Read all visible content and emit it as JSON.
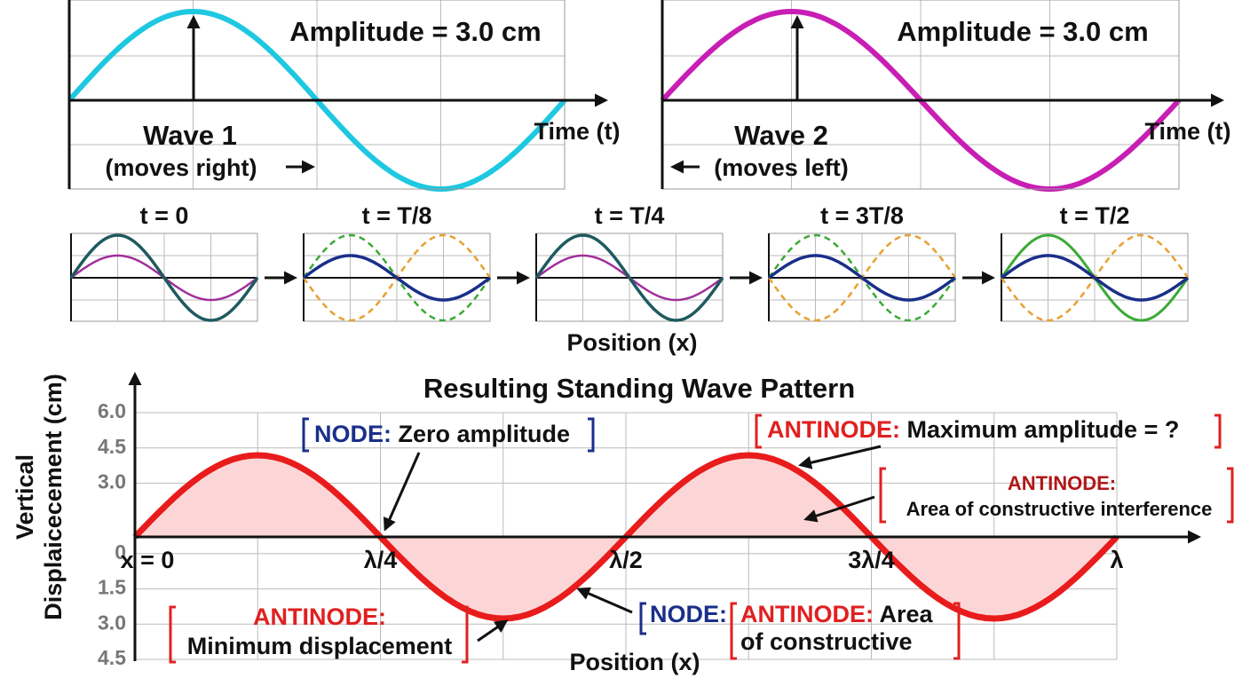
{
  "wave1": {
    "amplitude_label": "Amplitude = 3.0 cm",
    "axis_label": "Time (t)",
    "title": "Wave 1",
    "subtitle": "(moves right)"
  },
  "wave2": {
    "amplitude_label": "Amplitude = 3.0 cm",
    "axis_label": "Time (t)",
    "title": "Wave 2",
    "subtitle": "(moves left)"
  },
  "snapshots": {
    "times": [
      "t = 0",
      "t = T/8",
      "t = T/4",
      "t = 3T/8",
      "t = T/2"
    ],
    "axis_label": "Position (x)"
  },
  "standing_wave": {
    "title": "Resulting Standing Wave Pattern",
    "y_label_line1": "Vertical",
    "y_label_line2": "Displaicecement (cm)",
    "x_label": "Position (x)",
    "ylim": [
      -4.5,
      6
    ],
    "yticks": [
      {
        "value": 6,
        "label": "6.0"
      },
      {
        "value": 4.5,
        "label": "4.5"
      },
      {
        "value": 3,
        "label": "3.0"
      },
      0,
      {
        "value": -1.5,
        "label": "1.5"
      },
      {
        "value": -3,
        "label": "3.0"
      },
      {
        "value": -4.5,
        "label": "4.5"
      }
    ],
    "xlim": [
      0,
      1
    ],
    "xticks": [
      {
        "value": 0,
        "label": "x = 0"
      },
      {
        "value": 0.25,
        "label": "λ/4"
      },
      {
        "value": 0.5,
        "label": "λ/2"
      },
      {
        "value": 0.75,
        "label": "3λ/4"
      },
      {
        "value": 1,
        "label": "λ"
      }
    ],
    "annotations": {
      "node_top": {
        "tag": "NODE:",
        "text": "Zero amplitude"
      },
      "antinode_max": {
        "tag": "ANTINODE:",
        "text": "Maximum amplitude = ?"
      },
      "antinode_area": {
        "tag": "ANTINODE:",
        "text": "Area of constructive interference"
      },
      "antinode_min": {
        "tag": "ANTINODE:",
        "text": "Minimum displacement"
      },
      "node_bottom": {
        "tag": "NODE:"
      },
      "antinode_bottom": {
        "tag": "ANTINODE:",
        "text": "Area",
        "text2": "of constructive"
      }
    }
  }
}
